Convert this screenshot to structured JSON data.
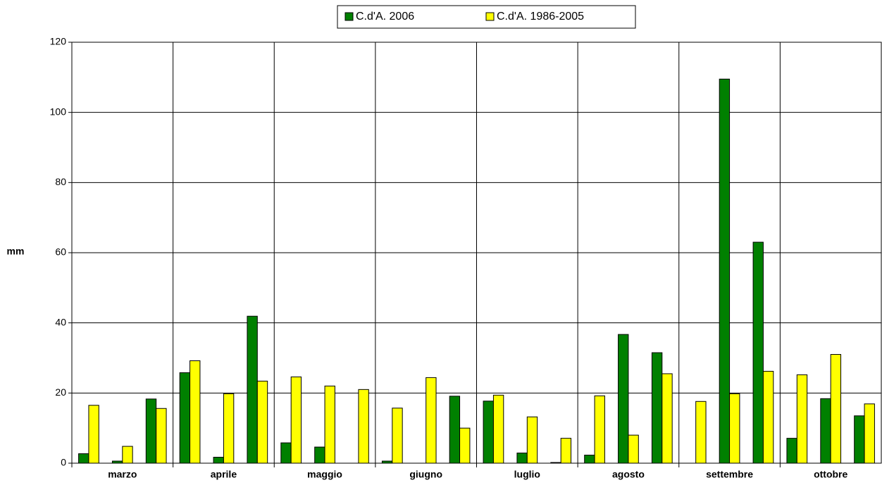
{
  "chart_data": {
    "type": "bar",
    "y_label": "mm",
    "categories": [
      null,
      "marzo",
      null,
      null,
      "aprile",
      null,
      null,
      "maggio",
      null,
      null,
      "giugno",
      null,
      null,
      "luglio",
      null,
      null,
      "agosto",
      null,
      null,
      "settembre",
      null,
      null,
      "ottobre",
      null
    ],
    "series": [
      {
        "name": "C.d'A. 2006",
        "color": "#008000",
        "values": [
          2.7,
          0.6,
          18.3,
          25.8,
          1.7,
          41.9,
          5.8,
          4.6,
          0,
          0.6,
          0,
          19.1,
          17.7,
          2.9,
          0.2,
          2.3,
          36.7,
          31.5,
          0,
          109.5,
          63.0,
          7.1,
          18.4,
          13.5
        ]
      },
      {
        "name": "C.d'A. 1986-2005",
        "color": "#ffff00",
        "values": [
          16.5,
          4.8,
          15.6,
          29.2,
          19.8,
          23.4,
          24.6,
          22.0,
          21.0,
          15.7,
          24.4,
          10.0,
          19.4,
          13.2,
          7.1,
          19.2,
          8.0,
          25.5,
          17.6,
          19.8,
          26.2,
          25.2,
          31.0,
          16.9
        ]
      }
    ],
    "ylim": [
      0,
      120
    ],
    "yticks": [
      0,
      20,
      40,
      60,
      80,
      100,
      120
    ],
    "grid": true,
    "legend": "top"
  }
}
